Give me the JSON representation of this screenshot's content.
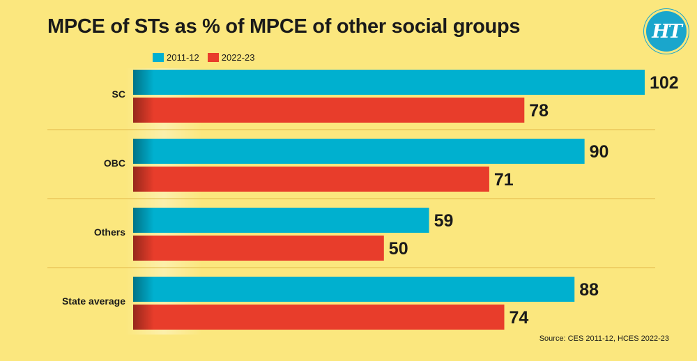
{
  "title": "MPCE of STs as % of MPCE of other social groups",
  "logo_text": "HT",
  "source": "Source: CES 2011-12, HCES 2022-23",
  "colors": {
    "background": "#fbe77e",
    "series_2011": "#00b0cf",
    "series_2022": "#e83d2b",
    "separator": "#e0b84a"
  },
  "chart_data": {
    "type": "bar",
    "orientation": "horizontal",
    "title": "MPCE of STs as % of MPCE of other social groups",
    "categories": [
      "SC",
      "OBC",
      "Others",
      "State average"
    ],
    "series": [
      {
        "name": "2011-12",
        "values": [
          102,
          90,
          59,
          88
        ]
      },
      {
        "name": "2022-23",
        "values": [
          78,
          71,
          50,
          74
        ]
      }
    ],
    "xlim": [
      0,
      102
    ],
    "grid": false,
    "legend_position": "top-left"
  }
}
